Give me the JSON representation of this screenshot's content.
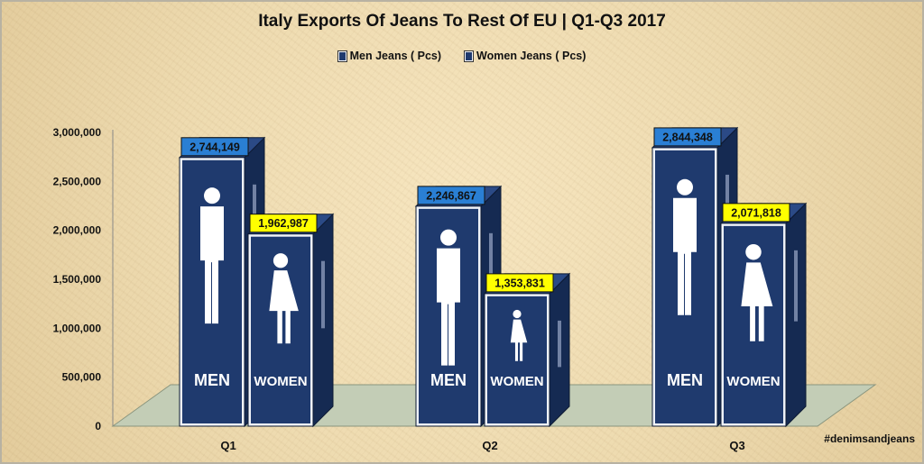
{
  "chart_data": {
    "type": "bar",
    "title": "Italy Exports Of Jeans To Rest Of EU | Q1-Q3 2017",
    "categories": [
      "Q1",
      "Q2",
      "Q3"
    ],
    "series": [
      {
        "name": "Men Jeans ( Pcs)",
        "values": [
          2744149,
          2246867,
          2844348
        ],
        "labels": [
          "2,744,149",
          "2,246,867",
          "2,844,348"
        ],
        "color": "#1f3a6e",
        "label_color": "#2a7fd4",
        "sign_text": "MEN"
      },
      {
        "name": "Women Jeans ( Pcs)",
        "values": [
          1962987,
          1353831,
          2071818
        ],
        "labels": [
          "1,962,987",
          "1,353,831",
          "2,071,818"
        ],
        "color": "#1f3a6e",
        "label_color": "#ffff00",
        "sign_text": "WOMEN"
      }
    ],
    "ylim": [
      0,
      3000000
    ],
    "yticks": [
      0,
      500000,
      1000000,
      1500000,
      2000000,
      2500000,
      3000000
    ],
    "ytick_labels": [
      "0",
      "500,000",
      "1,000,000",
      "1,500,000",
      "2,000,000",
      "2,500,000",
      "3,000,000"
    ],
    "grid": false,
    "legend": "top",
    "annotation": "#denimsandjeans"
  },
  "colors": {
    "sign_fill": "#1f3a6e",
    "sign_side": "#152a52",
    "floor": "#c3cdb6"
  }
}
